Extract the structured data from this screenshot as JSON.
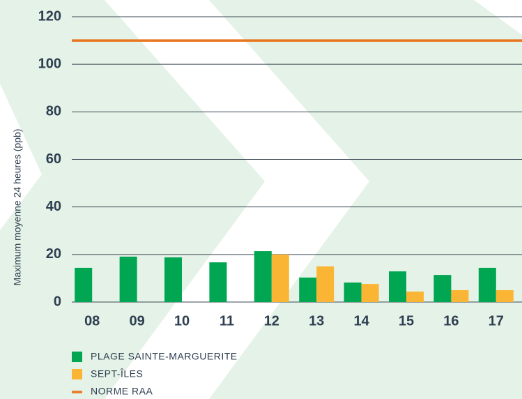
{
  "chart_data": {
    "type": "bar",
    "y_label": "Maximum moyenne 24 heures (ppb)",
    "categories": [
      "08",
      "09",
      "10",
      "11",
      "12",
      "13",
      "14",
      "15",
      "16",
      "17"
    ],
    "series": [
      {
        "name": "PLAGE SAINTE-MARGUERITE",
        "color": "#00a651",
        "values": [
          14.4,
          19.1,
          18.8,
          16.7,
          21.4,
          10.3,
          8.2,
          12.9,
          11.4,
          14.4
        ]
      },
      {
        "name": "SEPT-ÎLES",
        "color": "#fbb534",
        "values": [
          null,
          null,
          null,
          null,
          20,
          15,
          7.6,
          4.4,
          5,
          5
        ]
      }
    ],
    "reference": {
      "name": "NORME RAA",
      "value": 110,
      "color": "#e87722"
    },
    "ylim": [
      0,
      120
    ],
    "yticks": [
      0,
      20,
      40,
      60,
      80,
      100,
      120
    ],
    "grid": true
  }
}
